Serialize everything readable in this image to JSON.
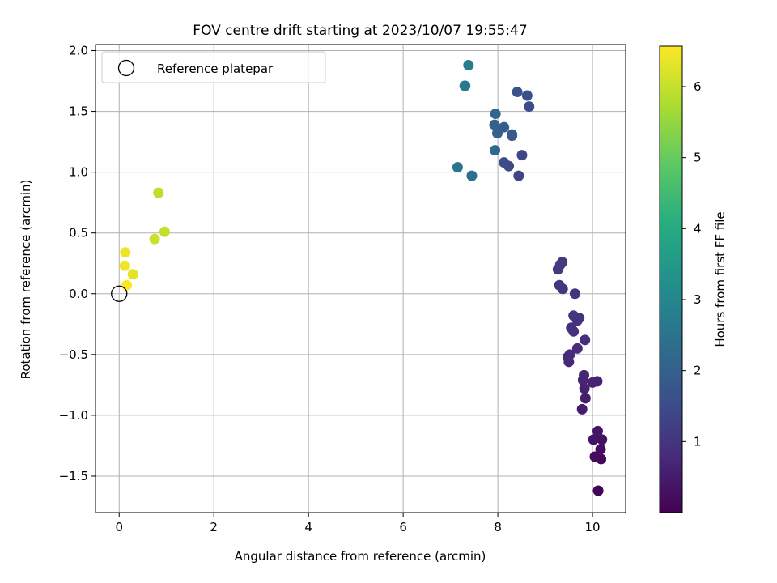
{
  "chart_data": {
    "type": "scatter",
    "title": "FOV centre drift starting at 2023/10/07 19:55:47",
    "xlabel": "Angular distance from reference (arcmin)",
    "ylabel": "Rotation from reference (arcmin)",
    "xlim": [
      -0.5,
      10.7
    ],
    "ylim": [
      -1.8,
      2.05
    ],
    "xticks": [
      0,
      2,
      4,
      6,
      8,
      10
    ],
    "yticks": [
      -1.5,
      -1.0,
      -0.5,
      0.0,
      0.5,
      1.0,
      1.5,
      2.0
    ],
    "xtick_labels": [
      "0",
      "2",
      "4",
      "6",
      "8",
      "10"
    ],
    "ytick_labels": [
      "−1.5",
      "−1.0",
      "−0.5",
      "0.0",
      "0.5",
      "1.0",
      "1.5",
      "2.0"
    ],
    "grid": true,
    "legend": {
      "location": "upper-left",
      "entries": [
        "Reference platepar"
      ]
    },
    "reference_point": {
      "x": 0.0,
      "y": 0.0,
      "marker": "open-circle",
      "label": "Reference platepar"
    },
    "colorbar": {
      "label": "Hours from first FF file",
      "colormap": "viridis",
      "range": [
        0.0,
        6.57
      ],
      "ticks": [
        1,
        2,
        3,
        4,
        5,
        6
      ],
      "tick_labels": [
        "1",
        "2",
        "3",
        "4",
        "5",
        "6"
      ]
    },
    "points": [
      {
        "x": 10.12,
        "y": -1.62,
        "c": 0.05
      },
      {
        "x": 10.18,
        "y": -1.36,
        "c": 0.15
      },
      {
        "x": 10.05,
        "y": -1.34,
        "c": 0.2
      },
      {
        "x": 10.17,
        "y": -1.28,
        "c": 0.25
      },
      {
        "x": 10.2,
        "y": -1.2,
        "c": 0.3
      },
      {
        "x": 10.02,
        "y": -1.2,
        "c": 0.35
      },
      {
        "x": 10.11,
        "y": -1.13,
        "c": 0.4
      },
      {
        "x": 9.78,
        "y": -0.95,
        "c": 0.5
      },
      {
        "x": 9.85,
        "y": -0.86,
        "c": 0.55
      },
      {
        "x": 9.83,
        "y": -0.78,
        "c": 0.6
      },
      {
        "x": 10.1,
        "y": -0.72,
        "c": 0.62
      },
      {
        "x": 10.0,
        "y": -0.73,
        "c": 0.65
      },
      {
        "x": 9.8,
        "y": -0.71,
        "c": 0.68
      },
      {
        "x": 9.82,
        "y": -0.67,
        "c": 0.7
      },
      {
        "x": 9.5,
        "y": -0.56,
        "c": 0.75
      },
      {
        "x": 9.48,
        "y": -0.52,
        "c": 0.78
      },
      {
        "x": 9.52,
        "y": -0.5,
        "c": 0.8
      },
      {
        "x": 9.68,
        "y": -0.45,
        "c": 0.82
      },
      {
        "x": 9.84,
        "y": -0.38,
        "c": 0.85
      },
      {
        "x": 9.6,
        "y": -0.31,
        "c": 0.88
      },
      {
        "x": 9.55,
        "y": -0.28,
        "c": 0.9
      },
      {
        "x": 9.68,
        "y": -0.22,
        "c": 0.92
      },
      {
        "x": 9.72,
        "y": -0.2,
        "c": 0.95
      },
      {
        "x": 9.6,
        "y": -0.18,
        "c": 0.98
      },
      {
        "x": 9.63,
        "y": -0.0,
        "c": 1.0
      },
      {
        "x": 9.37,
        "y": 0.04,
        "c": 1.03
      },
      {
        "x": 9.3,
        "y": 0.07,
        "c": 1.05
      },
      {
        "x": 9.27,
        "y": 0.2,
        "c": 1.08
      },
      {
        "x": 9.32,
        "y": 0.24,
        "c": 1.1
      },
      {
        "x": 9.36,
        "y": 0.26,
        "c": 1.12
      },
      {
        "x": 8.44,
        "y": 0.97,
        "c": 1.35
      },
      {
        "x": 8.51,
        "y": 1.14,
        "c": 1.4
      },
      {
        "x": 8.23,
        "y": 1.05,
        "c": 1.45
      },
      {
        "x": 8.13,
        "y": 1.08,
        "c": 1.5
      },
      {
        "x": 8.66,
        "y": 1.54,
        "c": 1.55
      },
      {
        "x": 8.62,
        "y": 1.63,
        "c": 1.6
      },
      {
        "x": 8.41,
        "y": 1.66,
        "c": 1.7
      },
      {
        "x": 8.3,
        "y": 1.3,
        "c": 1.8
      },
      {
        "x": 8.3,
        "y": 1.31,
        "c": 1.85
      },
      {
        "x": 8.13,
        "y": 1.37,
        "c": 1.9
      },
      {
        "x": 7.99,
        "y": 1.32,
        "c": 2.0
      },
      {
        "x": 7.93,
        "y": 1.39,
        "c": 2.05
      },
      {
        "x": 7.95,
        "y": 1.48,
        "c": 2.1
      },
      {
        "x": 7.94,
        "y": 1.18,
        "c": 2.2
      },
      {
        "x": 7.45,
        "y": 0.97,
        "c": 2.4
      },
      {
        "x": 7.15,
        "y": 1.04,
        "c": 2.5
      },
      {
        "x": 7.3,
        "y": 1.71,
        "c": 2.6
      },
      {
        "x": 7.31,
        "y": 1.71,
        "c": 2.65
      },
      {
        "x": 7.38,
        "y": 1.88,
        "c": 2.75
      },
      {
        "x": 0.83,
        "y": 0.83,
        "c": 5.9
      },
      {
        "x": 0.96,
        "y": 0.51,
        "c": 6.0
      },
      {
        "x": 0.75,
        "y": 0.45,
        "c": 6.05
      },
      {
        "x": 0.29,
        "y": 0.16,
        "c": 6.3
      },
      {
        "x": 0.13,
        "y": 0.34,
        "c": 6.4
      },
      {
        "x": 0.12,
        "y": 0.23,
        "c": 6.45
      },
      {
        "x": 0.16,
        "y": 0.07,
        "c": 6.55
      }
    ]
  }
}
